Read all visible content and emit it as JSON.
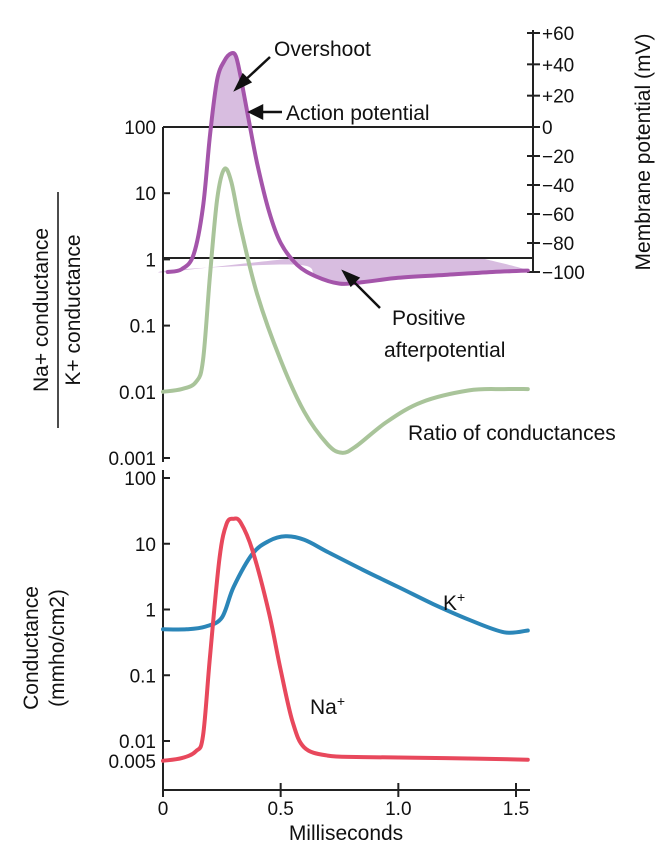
{
  "colors": {
    "membrane": "#a455aa",
    "membrane_fill": "#d8bde0",
    "ratio": "#a9c49a",
    "k": "#2b86b8",
    "na": "#e8485c",
    "axis": "#222222"
  },
  "chart_data": [
    {
      "type": "line",
      "panel": "top",
      "title": "",
      "left_axis": {
        "label_top": "Na+ conductance",
        "label_bottom": "K+ conductance",
        "scale": "log",
        "ticks": [
          {
            "value": 100,
            "label": "100"
          },
          {
            "value": 10,
            "label": "10"
          },
          {
            "value": 1,
            "label": "1"
          },
          {
            "value": 0.1,
            "label": "0.1"
          },
          {
            "value": 0.01,
            "label": "0.01"
          },
          {
            "value": 0.001,
            "label": "0.001"
          }
        ]
      },
      "right_axis": {
        "label": "Membrane potential (mV)",
        "range": [
          -100,
          60
        ],
        "ticks": [
          {
            "value": 60,
            "label": "+60"
          },
          {
            "value": 40,
            "label": "+40"
          },
          {
            "value": 20,
            "label": "+20"
          },
          {
            "value": 0,
            "label": "0"
          },
          {
            "value": -20,
            "label": "−20"
          },
          {
            "value": -40,
            "label": "−40"
          },
          {
            "value": -60,
            "label": "−60"
          },
          {
            "value": -80,
            "label": "−80"
          },
          {
            "value": -100,
            "label": "−100"
          }
        ]
      },
      "series": [
        {
          "name": "Action potential",
          "axis": "right",
          "unit": "mV",
          "points": [
            [
              0.02,
              -100
            ],
            [
              0.08,
              -98
            ],
            [
              0.13,
              -88
            ],
            [
              0.17,
              -55
            ],
            [
              0.2,
              -5
            ],
            [
              0.23,
              30
            ],
            [
              0.26,
              42
            ],
            [
              0.29,
              47
            ],
            [
              0.31,
              45
            ],
            [
              0.33,
              32
            ],
            [
              0.36,
              8
            ],
            [
              0.4,
              -25
            ],
            [
              0.45,
              -58
            ],
            [
              0.5,
              -80
            ],
            [
              0.57,
              -95
            ],
            [
              0.65,
              -103
            ],
            [
              0.75,
              -108
            ],
            [
              0.85,
              -107
            ],
            [
              1.0,
              -104
            ],
            [
              1.2,
              -102
            ],
            [
              1.4,
              -100
            ],
            [
              1.55,
              -99
            ]
          ]
        },
        {
          "name": "Ratio of conductances",
          "axis": "left",
          "unit": "ratio",
          "points": [
            [
              0.0,
              0.01
            ],
            [
              0.08,
              0.011
            ],
            [
              0.14,
              0.014
            ],
            [
              0.17,
              0.03
            ],
            [
              0.2,
              0.6
            ],
            [
              0.23,
              8
            ],
            [
              0.26,
              23
            ],
            [
              0.29,
              15
            ],
            [
              0.33,
              3
            ],
            [
              0.4,
              0.3
            ],
            [
              0.5,
              0.03
            ],
            [
              0.6,
              0.005
            ],
            [
              0.7,
              0.0016
            ],
            [
              0.76,
              0.0012
            ],
            [
              0.82,
              0.0015
            ],
            [
              0.95,
              0.0035
            ],
            [
              1.1,
              0.007
            ],
            [
              1.3,
              0.0105
            ],
            [
              1.45,
              0.011
            ],
            [
              1.55,
              0.011
            ]
          ]
        }
      ],
      "annotations": [
        {
          "text": "Overshoot"
        },
        {
          "text": "Action potential"
        },
        {
          "text_lines": [
            "Positive",
            "afterpotential"
          ]
        },
        {
          "text": "Ratio of conductances"
        }
      ]
    },
    {
      "type": "line",
      "panel": "bottom",
      "xlabel": "Milliseconds",
      "ylabel_top": "Conductance",
      "ylabel_bottom": "(mmho/cm2)",
      "scale": "log",
      "xlim": [
        0,
        1.55
      ],
      "x_ticks": [
        {
          "value": 0,
          "label": "0"
        },
        {
          "value": 0.5,
          "label": "0.5"
        },
        {
          "value": 1.0,
          "label": "1.0"
        },
        {
          "value": 1.5,
          "label": "1.5"
        }
      ],
      "y_ticks": [
        {
          "value": 100,
          "label": "100"
        },
        {
          "value": 10,
          "label": "10"
        },
        {
          "value": 1,
          "label": "1"
        },
        {
          "value": 0.1,
          "label": "0.1"
        },
        {
          "value": 0.01,
          "label": "0.01"
        },
        {
          "value": 0.005,
          "label": "0.005"
        }
      ],
      "series": [
        {
          "name": "K+",
          "points": [
            [
              0.0,
              0.5
            ],
            [
              0.1,
              0.5
            ],
            [
              0.18,
              0.55
            ],
            [
              0.25,
              0.75
            ],
            [
              0.3,
              2.2
            ],
            [
              0.38,
              7
            ],
            [
              0.45,
              11
            ],
            [
              0.52,
              13
            ],
            [
              0.6,
              11.5
            ],
            [
              0.7,
              7.5
            ],
            [
              0.85,
              4
            ],
            [
              1.0,
              2.2
            ],
            [
              1.15,
              1.2
            ],
            [
              1.3,
              0.7
            ],
            [
              1.45,
              0.45
            ],
            [
              1.55,
              0.48
            ]
          ]
        },
        {
          "name": "Na+",
          "points": [
            [
              0.0,
              0.005
            ],
            [
              0.08,
              0.0055
            ],
            [
              0.14,
              0.007
            ],
            [
              0.17,
              0.012
            ],
            [
              0.2,
              0.2
            ],
            [
              0.24,
              6
            ],
            [
              0.27,
              20
            ],
            [
              0.3,
              24
            ],
            [
              0.33,
              21
            ],
            [
              0.38,
              8
            ],
            [
              0.45,
              0.9
            ],
            [
              0.5,
              0.12
            ],
            [
              0.55,
              0.02
            ],
            [
              0.6,
              0.008
            ],
            [
              0.7,
              0.006
            ],
            [
              0.85,
              0.0057
            ],
            [
              1.2,
              0.0055
            ],
            [
              1.55,
              0.0052
            ]
          ]
        }
      ],
      "annotations": [
        {
          "text": "K+"
        },
        {
          "text": "Na+"
        }
      ]
    }
  ]
}
